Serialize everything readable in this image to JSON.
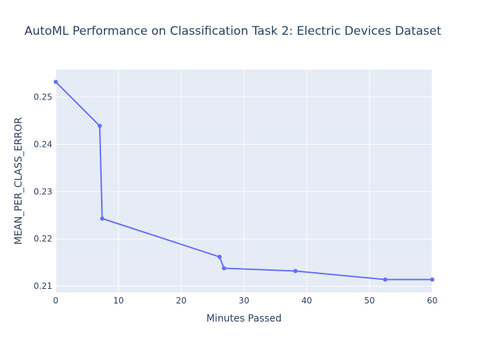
{
  "chart_data": {
    "type": "line",
    "title": "AutoML Performance on Classification Task 2: Electric Devices Dataset",
    "xlabel": "Minutes Passed",
    "ylabel": "MEAN_PER_CLASS_ERROR",
    "xlim": [
      0,
      60
    ],
    "ylim": [
      0.2087,
      0.2558
    ],
    "xticks": [
      0,
      10,
      20,
      30,
      40,
      50,
      60
    ],
    "yticks": [
      0.21,
      0.22,
      0.23,
      0.24,
      0.25
    ],
    "grid": true,
    "series": [
      {
        "name": "",
        "color": "#636efa",
        "mode": "lines+markers",
        "x": [
          0,
          7.0,
          7.4,
          26.1,
          26.8,
          38.2,
          52.5,
          60
        ],
        "y": [
          0.2532,
          0.2439,
          0.2243,
          0.2162,
          0.2138,
          0.2132,
          0.2114,
          0.2114
        ]
      }
    ]
  },
  "colors": {
    "plot_background": "#e5ecf6",
    "grid": "#ffffff",
    "text": "#2a3f5f",
    "line": "#636efa"
  }
}
